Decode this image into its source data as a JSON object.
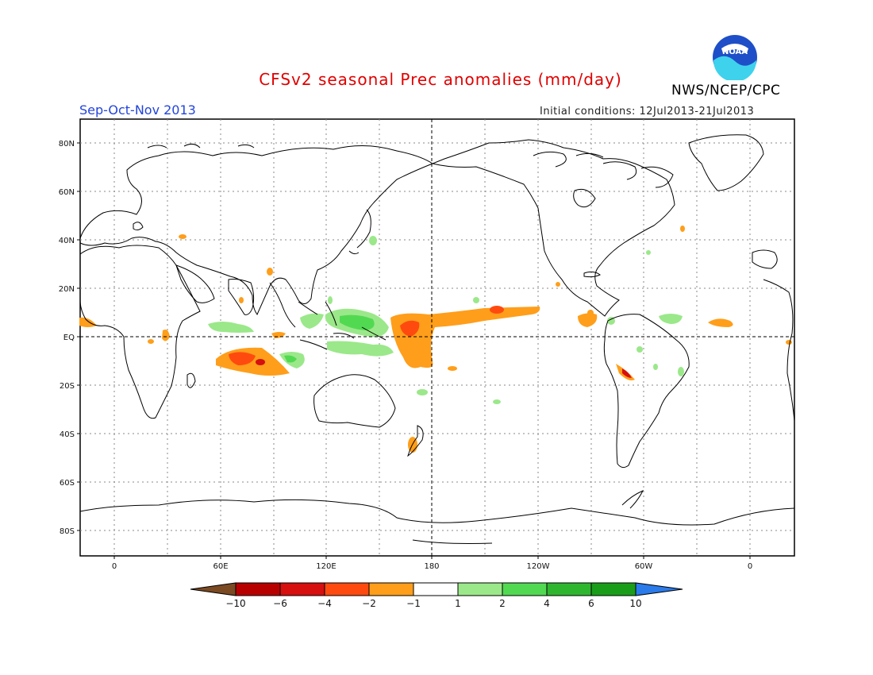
{
  "header": {
    "title": "CFSv2 seasonal Prec anomalies (mm/day)",
    "agency": "NWS/NCEP/CPC",
    "season": "Sep-Oct-Nov 2013",
    "initial_conditions": "Initial conditions: 12Jul2013-21Jul2013",
    "logo_text": "NOAA"
  },
  "map": {
    "lat_labels": [
      "80N",
      "60N",
      "40N",
      "20N",
      "EQ",
      "20S",
      "40S",
      "60S",
      "80S"
    ],
    "lon_labels": [
      "0",
      "60E",
      "120E",
      "180",
      "120W",
      "60W",
      "0"
    ]
  },
  "colorbar": {
    "labels": [
      "-10",
      "-6",
      "-4",
      "-2",
      "-1",
      "1",
      "2",
      "4",
      "6",
      "10"
    ],
    "colors": [
      "#7b4a22",
      "#b80000",
      "#d60f0f",
      "#ff4a0f",
      "#ff9e1a",
      "#ffffff",
      "#9be88a",
      "#52d952",
      "#2fb62f",
      "#1a9e1a",
      "#2b7bea"
    ]
  }
}
